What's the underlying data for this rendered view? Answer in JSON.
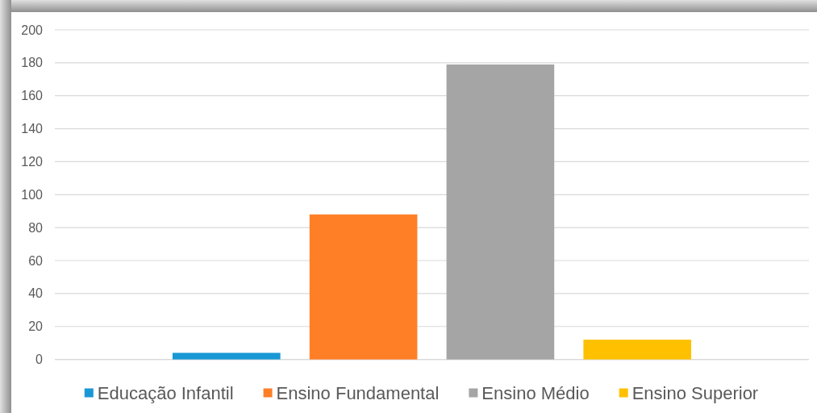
{
  "chart_data": {
    "type": "bar",
    "categories": [
      null
    ],
    "series": [
      {
        "name": "Educação Infantil",
        "color": "#1a98d5",
        "values": [
          4
        ]
      },
      {
        "name": "Ensino Fundamental",
        "color": "#ff7f27",
        "values": [
          88
        ]
      },
      {
        "name": "Ensino Médio",
        "color": "#a5a5a5",
        "values": [
          179
        ]
      },
      {
        "name": "Ensino Superior",
        "color": "#ffc000",
        "values": [
          12
        ]
      }
    ],
    "ylim": [
      0,
      200
    ],
    "yticks": [
      0,
      20,
      40,
      60,
      80,
      100,
      120,
      140,
      160,
      180,
      200
    ],
    "grid": "y",
    "legend": "bottom",
    "tick_labels": "y"
  }
}
